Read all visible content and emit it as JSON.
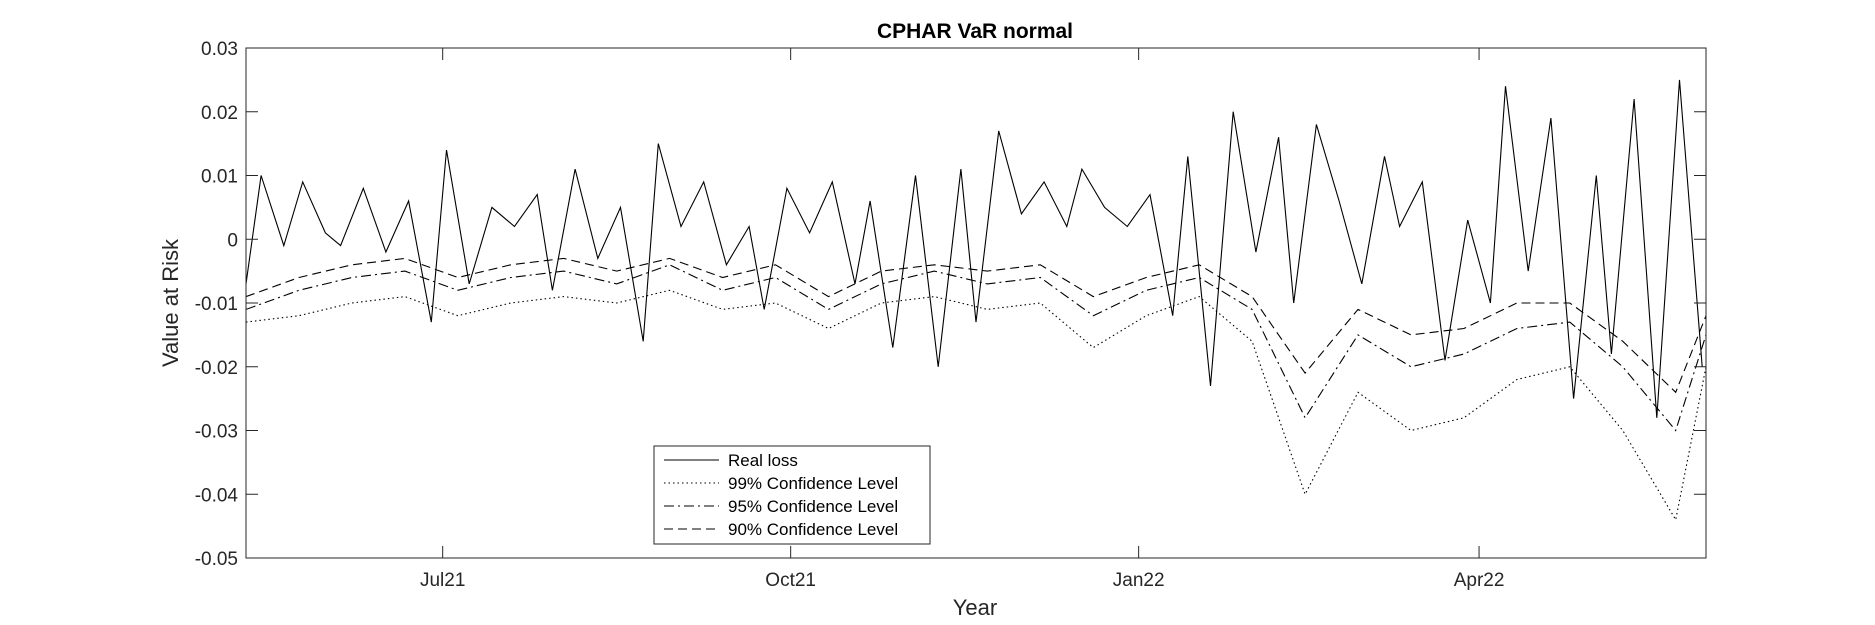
{
  "chart_data": {
    "type": "line",
    "title": "CPHAR VaR normal",
    "xlabel": "Year",
    "ylabel": "Value at Risk",
    "ylim": [
      -0.05,
      0.03
    ],
    "xlim": [
      "2021-05-10",
      "2022-05-31"
    ],
    "yticks": [
      0.03,
      0.02,
      0.01,
      0,
      -0.01,
      -0.02,
      -0.03,
      -0.04,
      -0.05
    ],
    "ytick_labels": [
      "0.03",
      "0.02",
      "0.01",
      "0",
      "-0.01",
      "-0.02",
      "-0.03",
      "-0.04",
      "-0.05"
    ],
    "xticks": [
      {
        "label": "Jul21",
        "date": "2021-07-01"
      },
      {
        "label": "Oct21",
        "date": "2021-10-01"
      },
      {
        "label": "Jan22",
        "date": "2022-01-01"
      },
      {
        "label": "Apr22",
        "date": "2022-04-01"
      }
    ],
    "grid": false,
    "legend_position": "bottom-center",
    "colors": {
      "lines": "#000000",
      "axes": "#262626"
    },
    "series": [
      {
        "name": "Real loss",
        "style": "solid",
        "x": [
          "2021-05-10",
          "2021-05-14",
          "2021-05-20",
          "2021-05-25",
          "2021-05-31",
          "2021-06-04",
          "2021-06-10",
          "2021-06-16",
          "2021-06-22",
          "2021-06-28",
          "2021-07-02",
          "2021-07-08",
          "2021-07-14",
          "2021-07-20",
          "2021-07-26",
          "2021-07-30",
          "2021-08-05",
          "2021-08-11",
          "2021-08-17",
          "2021-08-23",
          "2021-08-27",
          "2021-09-02",
          "2021-09-08",
          "2021-09-14",
          "2021-09-20",
          "2021-09-24",
          "2021-09-30",
          "2021-10-06",
          "2021-10-12",
          "2021-10-18",
          "2021-10-22",
          "2021-10-28",
          "2021-11-03",
          "2021-11-09",
          "2021-11-15",
          "2021-11-19",
          "2021-11-25",
          "2021-12-01",
          "2021-12-07",
          "2021-12-13",
          "2021-12-17",
          "2021-12-23",
          "2021-12-29",
          "2022-01-04",
          "2022-01-10",
          "2022-01-14",
          "2022-01-20",
          "2022-01-26",
          "2022-02-01",
          "2022-02-07",
          "2022-02-11",
          "2022-02-17",
          "2022-02-23",
          "2022-03-01",
          "2022-03-07",
          "2022-03-11",
          "2022-03-17",
          "2022-03-23",
          "2022-03-29",
          "2022-04-04",
          "2022-04-08",
          "2022-04-14",
          "2022-04-20",
          "2022-04-26",
          "2022-05-02",
          "2022-05-06",
          "2022-05-12",
          "2022-05-18",
          "2022-05-24",
          "2022-05-30"
        ],
        "y": [
          -0.007,
          0.01,
          -0.001,
          0.009,
          0.001,
          -0.001,
          0.008,
          -0.002,
          0.006,
          -0.013,
          0.014,
          -0.007,
          0.005,
          0.002,
          0.007,
          -0.008,
          0.011,
          -0.003,
          0.005,
          -0.016,
          0.015,
          0.002,
          0.009,
          -0.004,
          0.002,
          -0.011,
          0.008,
          0.001,
          0.009,
          -0.007,
          0.006,
          -0.017,
          0.01,
          -0.02,
          0.011,
          -0.013,
          0.017,
          0.004,
          0.009,
          0.002,
          0.011,
          0.005,
          0.002,
          0.007,
          -0.012,
          0.013,
          -0.023,
          0.02,
          -0.002,
          0.016,
          -0.01,
          0.018,
          0.006,
          -0.007,
          0.013,
          0.002,
          0.009,
          -0.019,
          0.003,
          -0.01,
          0.024,
          -0.005,
          0.019,
          -0.025,
          0.01,
          -0.018,
          0.022,
          -0.028,
          0.025,
          -0.02
        ]
      },
      {
        "name": "99% Confidence Level",
        "style": "dotted",
        "x": [
          "2021-05-10",
          "2021-05-24",
          "2021-06-07",
          "2021-06-21",
          "2021-07-05",
          "2021-07-19",
          "2021-08-02",
          "2021-08-16",
          "2021-08-30",
          "2021-09-13",
          "2021-09-27",
          "2021-10-11",
          "2021-10-25",
          "2021-11-08",
          "2021-11-22",
          "2021-12-06",
          "2021-12-20",
          "2022-01-03",
          "2022-01-17",
          "2022-01-31",
          "2022-02-14",
          "2022-02-28",
          "2022-03-14",
          "2022-03-28",
          "2022-04-11",
          "2022-04-25",
          "2022-05-09",
          "2022-05-23",
          "2022-05-31"
        ],
        "y": [
          -0.013,
          -0.012,
          -0.01,
          -0.009,
          -0.012,
          -0.01,
          -0.009,
          -0.01,
          -0.008,
          -0.011,
          -0.01,
          -0.014,
          -0.01,
          -0.009,
          -0.011,
          -0.01,
          -0.017,
          -0.012,
          -0.009,
          -0.016,
          -0.04,
          -0.024,
          -0.03,
          -0.028,
          -0.022,
          -0.02,
          -0.03,
          -0.044,
          -0.02
        ]
      },
      {
        "name": "95% Confidence Level",
        "style": "dashdot",
        "x": [
          "2021-05-10",
          "2021-05-24",
          "2021-06-07",
          "2021-06-21",
          "2021-07-05",
          "2021-07-19",
          "2021-08-02",
          "2021-08-16",
          "2021-08-30",
          "2021-09-13",
          "2021-09-27",
          "2021-10-11",
          "2021-10-25",
          "2021-11-08",
          "2021-11-22",
          "2021-12-06",
          "2021-12-20",
          "2022-01-03",
          "2022-01-17",
          "2022-01-31",
          "2022-02-14",
          "2022-02-28",
          "2022-03-14",
          "2022-03-28",
          "2022-04-11",
          "2022-04-25",
          "2022-05-09",
          "2022-05-23",
          "2022-05-31"
        ],
        "y": [
          -0.011,
          -0.008,
          -0.006,
          -0.005,
          -0.008,
          -0.006,
          -0.005,
          -0.007,
          -0.004,
          -0.008,
          -0.006,
          -0.011,
          -0.007,
          -0.005,
          -0.007,
          -0.006,
          -0.012,
          -0.008,
          -0.006,
          -0.011,
          -0.028,
          -0.015,
          -0.02,
          -0.018,
          -0.014,
          -0.013,
          -0.02,
          -0.03,
          -0.015
        ]
      },
      {
        "name": "90% Confidence Level",
        "style": "dashed",
        "x": [
          "2021-05-10",
          "2021-05-24",
          "2021-06-07",
          "2021-06-21",
          "2021-07-05",
          "2021-07-19",
          "2021-08-02",
          "2021-08-16",
          "2021-08-30",
          "2021-09-13",
          "2021-09-27",
          "2021-10-11",
          "2021-10-25",
          "2021-11-08",
          "2021-11-22",
          "2021-12-06",
          "2021-12-20",
          "2022-01-03",
          "2022-01-17",
          "2022-01-31",
          "2022-02-14",
          "2022-02-28",
          "2022-03-14",
          "2022-03-28",
          "2022-04-11",
          "2022-04-25",
          "2022-05-09",
          "2022-05-23",
          "2022-05-31"
        ],
        "y": [
          -0.009,
          -0.006,
          -0.004,
          -0.003,
          -0.006,
          -0.004,
          -0.003,
          -0.005,
          -0.003,
          -0.006,
          -0.004,
          -0.009,
          -0.005,
          -0.004,
          -0.005,
          -0.004,
          -0.009,
          -0.006,
          -0.004,
          -0.009,
          -0.021,
          -0.011,
          -0.015,
          -0.014,
          -0.01,
          -0.01,
          -0.016,
          -0.024,
          -0.012
        ]
      }
    ]
  }
}
